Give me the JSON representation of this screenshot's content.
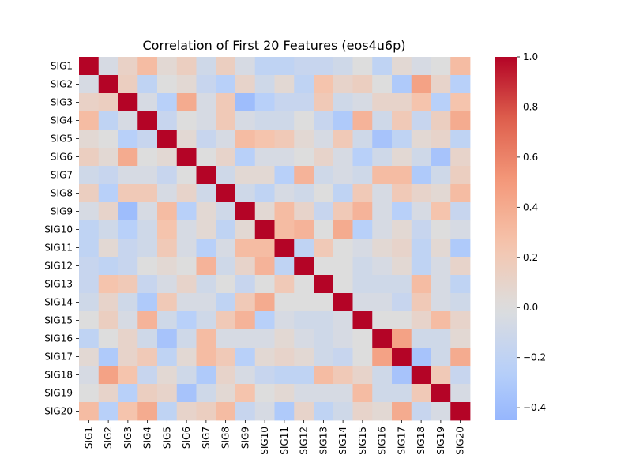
{
  "chart_data": {
    "type": "heatmap",
    "title": "Correlation of First 20 Features (eos4u6p)",
    "xlabel": "",
    "ylabel": "",
    "rows": [
      "SIG1",
      "SIG2",
      "SIG3",
      "SIG4",
      "SIG5",
      "SIG6",
      "SIG7",
      "SIG8",
      "SIG9",
      "SIG10",
      "SIG11",
      "SIG12",
      "SIG13",
      "SIG14",
      "SIG15",
      "SIG16",
      "SIG17",
      "SIG18",
      "SIG19",
      "SIG20"
    ],
    "columns": [
      "SIG1",
      "SIG2",
      "SIG3",
      "SIG4",
      "SIG5",
      "SIG6",
      "SIG7",
      "SIG8",
      "SIG9",
      "SIG10",
      "SIG11",
      "SIG12",
      "SIG13",
      "SIG14",
      "SIG15",
      "SIG16",
      "SIG17",
      "SIG18",
      "SIG19",
      "SIG20"
    ],
    "values": [
      [
        1.0,
        -0.05,
        0.12,
        0.3,
        0.05,
        0.15,
        -0.1,
        0.15,
        -0.05,
        -0.2,
        -0.2,
        -0.15,
        -0.15,
        -0.1,
        0.0,
        -0.2,
        0.05,
        -0.05,
        0.0,
        0.3
      ],
      [
        -0.05,
        1.0,
        0.15,
        -0.2,
        0.0,
        0.05,
        -0.15,
        -0.25,
        0.1,
        -0.1,
        0.05,
        -0.2,
        0.25,
        0.1,
        0.15,
        0.0,
        -0.3,
        0.45,
        0.1,
        -0.25
      ],
      [
        0.12,
        0.15,
        1.0,
        -0.05,
        -0.25,
        0.4,
        -0.05,
        0.2,
        -0.4,
        -0.25,
        -0.15,
        -0.15,
        0.2,
        -0.1,
        -0.05,
        0.1,
        0.1,
        0.25,
        -0.25,
        0.25
      ],
      [
        0.3,
        -0.2,
        -0.05,
        1.0,
        -0.15,
        0.0,
        -0.05,
        0.2,
        -0.05,
        -0.1,
        -0.1,
        0.0,
        -0.15,
        -0.3,
        0.35,
        -0.1,
        0.2,
        -0.15,
        0.15,
        0.4
      ],
      [
        0.05,
        0.0,
        -0.25,
        -0.15,
        1.0,
        0.05,
        -0.15,
        -0.05,
        0.3,
        0.25,
        0.2,
        0.05,
        -0.05,
        0.2,
        -0.1,
        -0.35,
        -0.2,
        0.05,
        0.1,
        -0.2
      ],
      [
        0.15,
        0.05,
        0.4,
        0.0,
        0.05,
        1.0,
        0.0,
        0.1,
        -0.25,
        -0.05,
        -0.05,
        0.0,
        0.1,
        -0.05,
        -0.25,
        -0.1,
        0.05,
        -0.1,
        -0.35,
        0.1
      ],
      [
        -0.1,
        -0.15,
        -0.05,
        -0.05,
        -0.15,
        0.0,
        1.0,
        -0.1,
        0.05,
        0.05,
        -0.25,
        0.35,
        -0.1,
        -0.05,
        -0.1,
        0.3,
        0.3,
        -0.3,
        -0.1,
        0.15
      ],
      [
        0.15,
        -0.25,
        0.2,
        0.2,
        -0.05,
        0.1,
        -0.1,
        1.0,
        -0.1,
        -0.2,
        -0.05,
        -0.1,
        0.0,
        -0.2,
        0.2,
        -0.05,
        0.2,
        0.1,
        0.05,
        0.3
      ],
      [
        -0.05,
        0.1,
        -0.4,
        -0.05,
        0.3,
        -0.25,
        0.05,
        -0.1,
        1.0,
        0.05,
        0.3,
        0.1,
        -0.15,
        0.2,
        0.35,
        -0.05,
        -0.25,
        -0.05,
        0.25,
        -0.15
      ],
      [
        -0.2,
        -0.1,
        -0.25,
        -0.1,
        0.25,
        -0.05,
        0.05,
        -0.2,
        0.05,
        1.0,
        0.3,
        0.35,
        0.0,
        0.4,
        -0.25,
        -0.05,
        0.05,
        -0.15,
        0.0,
        -0.05
      ],
      [
        -0.2,
        0.05,
        -0.15,
        -0.1,
        0.2,
        -0.05,
        -0.25,
        -0.05,
        0.3,
        0.3,
        1.0,
        -0.2,
        0.2,
        0.0,
        -0.05,
        0.05,
        0.1,
        -0.2,
        0.05,
        -0.3
      ],
      [
        -0.15,
        -0.2,
        -0.15,
        0.0,
        0.05,
        0.0,
        0.35,
        -0.1,
        0.1,
        0.35,
        -0.2,
        1.0,
        0.0,
        0.0,
        -0.1,
        -0.05,
        0.05,
        -0.2,
        -0.05,
        0.1
      ],
      [
        -0.15,
        0.25,
        0.2,
        -0.15,
        -0.05,
        0.1,
        -0.1,
        0.0,
        -0.15,
        0.0,
        0.2,
        0.0,
        1.0,
        0.0,
        -0.1,
        -0.1,
        -0.1,
        0.3,
        -0.05,
        -0.2
      ],
      [
        -0.1,
        0.1,
        -0.1,
        -0.3,
        0.2,
        -0.05,
        -0.05,
        -0.2,
        0.2,
        0.4,
        0.0,
        0.0,
        0.0,
        1.0,
        -0.05,
        -0.05,
        -0.15,
        0.2,
        -0.05,
        -0.1
      ],
      [
        0.0,
        0.15,
        -0.05,
        0.35,
        -0.1,
        -0.25,
        -0.1,
        0.2,
        0.35,
        -0.25,
        -0.05,
        -0.1,
        -0.1,
        -0.05,
        1.0,
        0.0,
        0.0,
        0.1,
        0.3,
        0.1
      ],
      [
        -0.2,
        0.0,
        0.1,
        -0.1,
        -0.35,
        -0.1,
        0.3,
        -0.05,
        -0.05,
        -0.05,
        0.05,
        -0.05,
        -0.1,
        -0.05,
        0.0,
        1.0,
        0.45,
        -0.1,
        -0.1,
        0.05
      ],
      [
        0.05,
        -0.3,
        0.1,
        0.2,
        -0.2,
        0.05,
        0.3,
        0.2,
        -0.25,
        0.05,
        0.1,
        0.05,
        -0.1,
        -0.15,
        0.0,
        0.45,
        1.0,
        -0.35,
        -0.1,
        0.4
      ],
      [
        -0.05,
        0.45,
        0.25,
        -0.15,
        0.05,
        -0.1,
        -0.3,
        0.1,
        -0.05,
        -0.15,
        -0.2,
        -0.2,
        0.3,
        0.2,
        0.1,
        -0.1,
        -0.35,
        1.0,
        0.2,
        -0.15
      ],
      [
        0.0,
        0.1,
        -0.25,
        0.15,
        0.1,
        -0.35,
        -0.1,
        0.05,
        0.25,
        0.0,
        0.05,
        -0.05,
        -0.05,
        -0.05,
        0.3,
        -0.1,
        -0.1,
        0.2,
        1.0,
        -0.05
      ],
      [
        0.3,
        -0.25,
        0.25,
        0.4,
        -0.2,
        0.1,
        0.15,
        0.3,
        -0.15,
        -0.05,
        -0.3,
        0.1,
        -0.2,
        -0.1,
        0.1,
        0.05,
        0.4,
        -0.15,
        -0.05,
        1.0
      ]
    ],
    "colorbar": {
      "colormap": "coolwarm",
      "vmin": -0.45,
      "vmax": 1.0,
      "center": 0.0,
      "ticks": [
        -0.4,
        -0.2,
        0.0,
        0.2,
        0.4,
        0.6,
        0.8,
        1.0
      ],
      "tick_labels": [
        "−0.4",
        "−0.2",
        "0.0",
        "0.2",
        "0.4",
        "0.6",
        "0.8",
        "1.0"
      ]
    },
    "grid": false,
    "legend": "colorbar-right"
  }
}
